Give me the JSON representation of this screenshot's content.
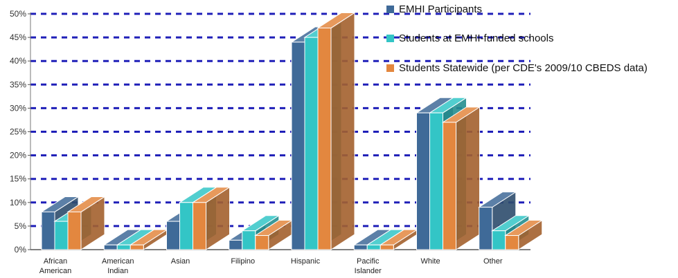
{
  "chart_data": {
    "type": "bar",
    "categories": [
      [
        "African",
        "American"
      ],
      [
        "American",
        "Indian"
      ],
      [
        "Asian"
      ],
      [
        "Filipino"
      ],
      [
        "Hispanic"
      ],
      [
        "Pacific",
        "Islander"
      ],
      [
        "White"
      ],
      [
        "Other"
      ]
    ],
    "series": [
      {
        "name": "EMHI Participants",
        "values": [
          8,
          1,
          6,
          2,
          44,
          1,
          29,
          9
        ],
        "color": "#3f6a98"
      },
      {
        "name": "Students at EMHI-funded schools",
        "values": [
          6,
          1,
          10,
          4,
          45,
          1,
          29,
          4
        ],
        "color": "#33c5c6"
      },
      {
        "name": "Students Statewide (per CDE's 2009/10 CBEDS data)",
        "values": [
          8,
          1,
          10,
          3,
          47,
          1,
          27,
          3
        ],
        "color": "#e3873f"
      }
    ],
    "ylim": [
      0,
      50
    ],
    "yticks": [
      "0%",
      "5%",
      "10%",
      "15%",
      "20%",
      "25%",
      "30%",
      "35%",
      "40%",
      "45%",
      "50%"
    ],
    "title": "",
    "xlabel": "",
    "ylabel": "",
    "grid": true,
    "gridline_color": "#1f1fb8",
    "legend_position": "top-right",
    "style": "3d-clustered"
  }
}
